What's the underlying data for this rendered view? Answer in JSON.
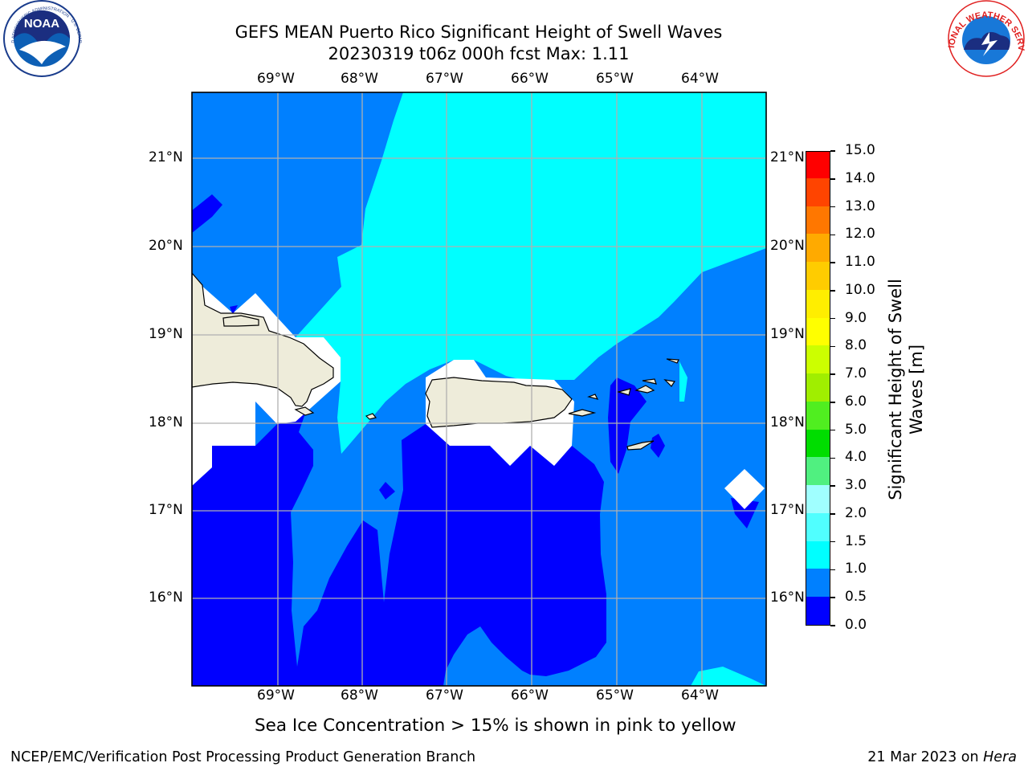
{
  "header": {
    "title_line1": "GEFS MEAN Puerto Rico Significant Height of Swell Waves",
    "title_line2": "20230319 t06z 000h fcst   Max: 1.11"
  },
  "logos": {
    "left": {
      "name": "noaa-logo",
      "text": "NOAA",
      "ring_text": "NATIONAL OCEANIC AND ATMOSPHERIC ADMINISTRATION · U.S. DEPARTMENT OF COMMERCE"
    },
    "right": {
      "name": "nws-logo",
      "ring_text": "NATIONAL WEATHER SERVICE"
    }
  },
  "map": {
    "lon_labels": [
      "69°W",
      "68°W",
      "67°W",
      "66°W",
      "65°W",
      "64°W"
    ],
    "lat_labels": [
      "21°N",
      "20°N",
      "19°N",
      "18°N",
      "17°N",
      "16°N"
    ],
    "colors": {
      "band_0_0p5": "#0000ff",
      "band_0p5_1": "#0080ff",
      "band_1_1p5": "#00ffff",
      "land": "#eeecda",
      "grid": "#b0b0b0"
    }
  },
  "colorbar": {
    "label": "Significant Height of Swell\nWaves [m]",
    "label_line1": "Significant Height of Swell",
    "label_line2": "Waves [m]",
    "ticks": [
      "0.0",
      "0.5",
      "1.0",
      "1.5",
      "2.0",
      "3.0",
      "4.0",
      "5.0",
      "6.0",
      "7.0",
      "8.0",
      "9.0",
      "10.0",
      "11.0",
      "12.0",
      "13.0",
      "14.0",
      "15.0"
    ],
    "colors": [
      "#0000ff",
      "#0080ff",
      "#00ffff",
      "#50ffff",
      "#a0ffff",
      "#50f080",
      "#00dd00",
      "#50ee20",
      "#a0ee00",
      "#ccff00",
      "#ffff00",
      "#ffee00",
      "#ffcc00",
      "#ffaa00",
      "#ff7700",
      "#ff4400",
      "#ff0000"
    ]
  },
  "footer": {
    "note": "Sea Ice Concentration > 15% is shown in pink to yellow",
    "left": "NCEP/EMC/Verification Post Processing Product Generation Branch",
    "right_prefix": "21 Mar 2023 on ",
    "right_machine": "Hera"
  }
}
